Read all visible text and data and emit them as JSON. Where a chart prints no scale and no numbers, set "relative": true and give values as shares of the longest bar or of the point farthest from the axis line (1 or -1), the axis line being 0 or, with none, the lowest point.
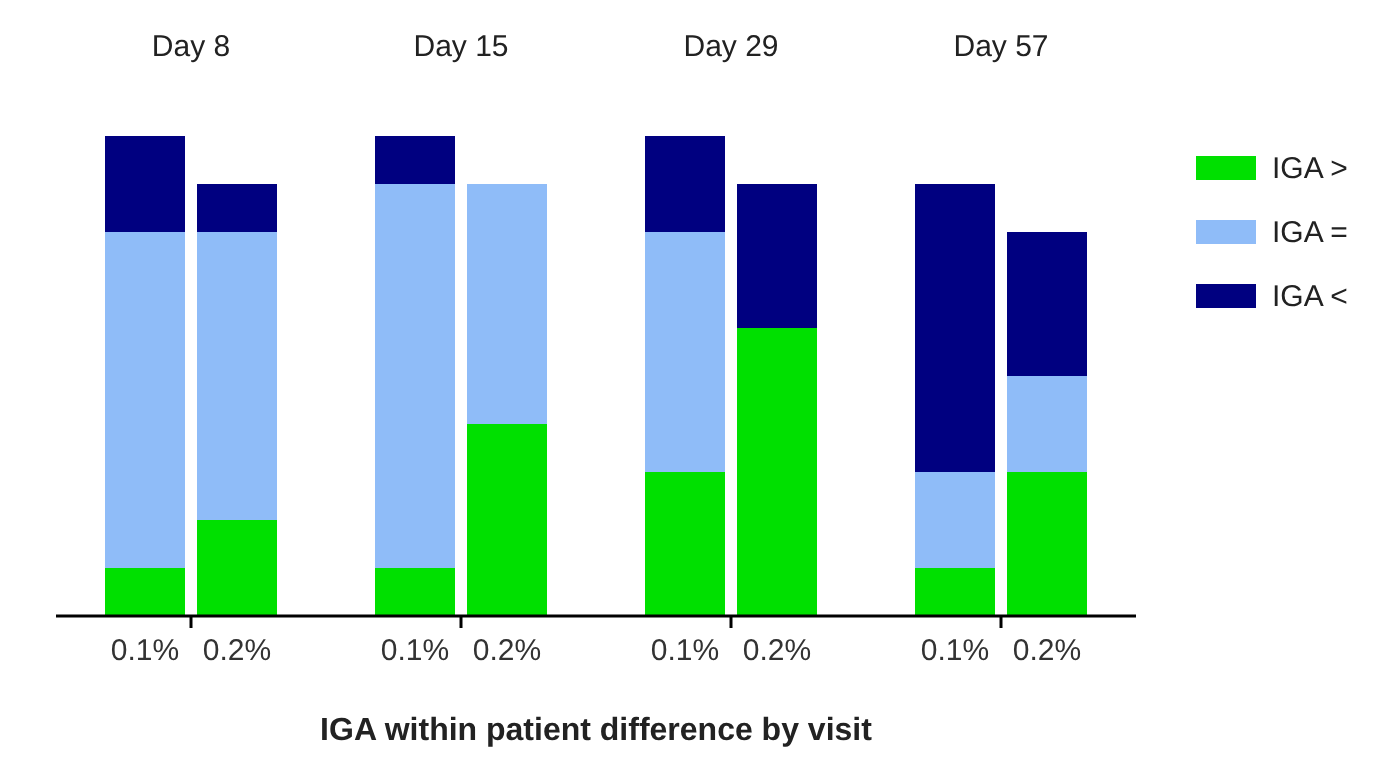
{
  "chart_data": {
    "type": "bar",
    "stacked": true,
    "relative": true,
    "xlabel": "IGA within patient difference by visit",
    "annotations": [
      "Day 8",
      "Day 15",
      "Day 29",
      "Day 57"
    ],
    "categories": [
      "0.1%",
      "0.2%",
      "0.1%",
      "0.2%",
      "0.1%",
      "0.2%",
      "0.1%",
      "0.2%"
    ],
    "series": [
      {
        "name": "IGA >",
        "color": "#00e000",
        "values": [
          0.1,
          0.2,
          0.1,
          0.4,
          0.3,
          0.6,
          0.1,
          0.3
        ]
      },
      {
        "name": "IGA =",
        "color": "#8fbcf8",
        "values": [
          0.7,
          0.6,
          0.8,
          0.5,
          0.5,
          0,
          0.2,
          0.2
        ]
      },
      {
        "name": "IGA <",
        "color": "#000080",
        "values": [
          0.2,
          0.1,
          0.1,
          0,
          0.2,
          0.3,
          0.6,
          0.3
        ]
      }
    ],
    "legend": "right"
  }
}
